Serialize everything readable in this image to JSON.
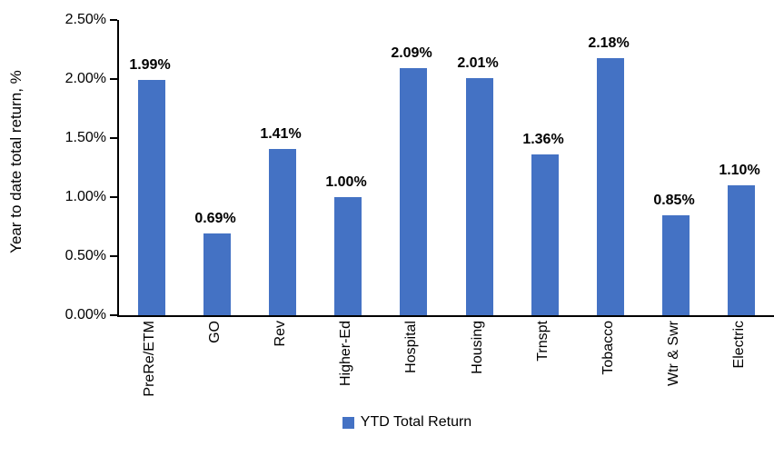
{
  "chart_data": {
    "type": "bar",
    "categories": [
      "PreRe/ETM",
      "GO",
      "Rev",
      "Higher-Ed",
      "Hospital",
      "Housing",
      "Trnspt",
      "Tobacco",
      "Wtr & Swr",
      "Electric"
    ],
    "values": [
      1.99,
      0.69,
      1.41,
      1.0,
      2.09,
      2.01,
      1.36,
      2.18,
      0.85,
      1.1
    ],
    "data_labels": [
      "1.99%",
      "0.69%",
      "1.41%",
      "1.00%",
      "2.09%",
      "2.01%",
      "1.36%",
      "2.18%",
      "0.85%",
      "1.10%"
    ],
    "series_name": "YTD Total Return",
    "title": "",
    "xlabel": "",
    "ylabel": "Year to date total return, %",
    "ylim": [
      0,
      2.5
    ],
    "ytick_labels": [
      "0.00%",
      "0.50%",
      "1.00%",
      "1.50%",
      "2.00%",
      "2.50%"
    ],
    "grid": false,
    "legend_position": "bottom",
    "bar_color": "#4472C4",
    "axis_color": "#000000"
  },
  "legend": {
    "label": "YTD Total Return",
    "swatch_color": "#4472C4"
  }
}
